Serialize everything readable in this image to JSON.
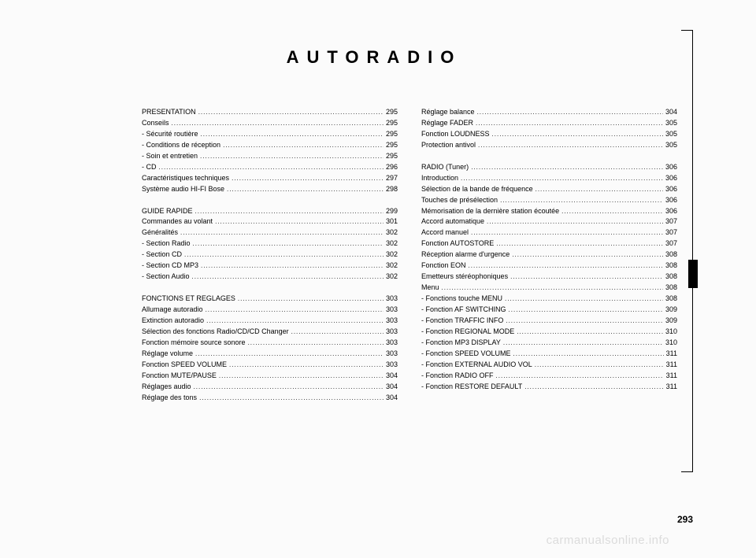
{
  "title": "AUTORADIO",
  "page_number": "293",
  "watermark": "carmanualsonline.info",
  "colors": {
    "background": "#fbfbfb",
    "text": "#000000",
    "watermark": "#dcdcdc"
  },
  "columns": [
    {
      "groups": [
        [
          {
            "label": "PRESENTATION",
            "page": "295"
          },
          {
            "label": "Conseils",
            "page": "295"
          },
          {
            "label": "- Sécurité routière",
            "page": "295"
          },
          {
            "label": "- Conditions de réception",
            "page": "295"
          },
          {
            "label": "- Soin et entretien",
            "page": "295"
          },
          {
            "label": "- CD",
            "page": "296"
          },
          {
            "label": "Caractéristiques techniques",
            "page": "297"
          },
          {
            "label": "Système audio HI-FI Bose",
            "page": "298"
          }
        ],
        [
          {
            "label": "GUIDE RAPIDE",
            "page": "299"
          },
          {
            "label": "Commandes au volant",
            "page": "301"
          },
          {
            "label": "Généralités",
            "page": "302"
          },
          {
            "label": "- Section Radio",
            "page": "302"
          },
          {
            "label": "- Section CD",
            "page": "302"
          },
          {
            "label": "- Section CD MP3",
            "page": "302"
          },
          {
            "label": "- Section Audio",
            "page": "302"
          }
        ],
        [
          {
            "label": "FONCTIONS ET REGLAGES",
            "page": "303"
          },
          {
            "label": "Allumage autoradio",
            "page": "303"
          },
          {
            "label": "Extinction autoradio",
            "page": "303"
          },
          {
            "label": "Sélection des fonctions Radio/CD/CD Changer",
            "page": "303"
          },
          {
            "label": "Fonction mémoire source sonore",
            "page": "303"
          },
          {
            "label": "Réglage volume",
            "page": "303"
          },
          {
            "label": "Fonction SPEED VOLUME",
            "page": "303"
          },
          {
            "label": "Fonction MUTE/PAUSE",
            "page": "304"
          },
          {
            "label": "Réglages audio",
            "page": "304"
          },
          {
            "label": "Réglage des tons",
            "page": "304"
          }
        ]
      ]
    },
    {
      "groups": [
        [
          {
            "label": "Réglage balance",
            "page": "304"
          },
          {
            "label": "Réglage FADER",
            "page": "305"
          },
          {
            "label": "Fonction LOUDNESS",
            "page": "305"
          },
          {
            "label": "Protection antivol",
            "page": "305"
          }
        ],
        [
          {
            "label": "RADIO (Tuner)",
            "page": "306"
          },
          {
            "label": "Introduction",
            "page": "306"
          },
          {
            "label": "Sélection de la bande de fréquence",
            "page": "306"
          },
          {
            "label": "Touches de présélection",
            "page": "306"
          },
          {
            "label": "Mémorisation de la dernière station écoutée",
            "page": "306"
          },
          {
            "label": "Accord automatique",
            "page": "307"
          },
          {
            "label": "Accord manuel",
            "page": "307"
          },
          {
            "label": "Fonction AUTOSTORE",
            "page": "307"
          },
          {
            "label": "Réception alarme d'urgence",
            "page": "308"
          },
          {
            "label": "Fonction EON",
            "page": "308"
          },
          {
            "label": "Emetteurs stéréophoniques",
            "page": "308"
          },
          {
            "label": "Menu",
            "page": "308"
          },
          {
            "label": "- Fonctions touche MENU",
            "page": "308"
          },
          {
            "label": "- Fonction AF SWITCHING",
            "page": "309"
          },
          {
            "label": "- Fonction TRAFFIC INFO",
            "page": "309"
          },
          {
            "label": "- Fonction REGIONAL MODE",
            "page": "310"
          },
          {
            "label": "- Fonction MP3 DISPLAY",
            "page": "310"
          },
          {
            "label": "- Fonction SPEED VOLUME",
            "page": "311"
          },
          {
            "label": "- Fonction EXTERNAL AUDIO VOL",
            "page": "311"
          },
          {
            "label": "- Fonction RADIO OFF",
            "page": "311"
          },
          {
            "label": "- Fonction RESTORE DEFAULT",
            "page": "311"
          }
        ]
      ]
    }
  ]
}
